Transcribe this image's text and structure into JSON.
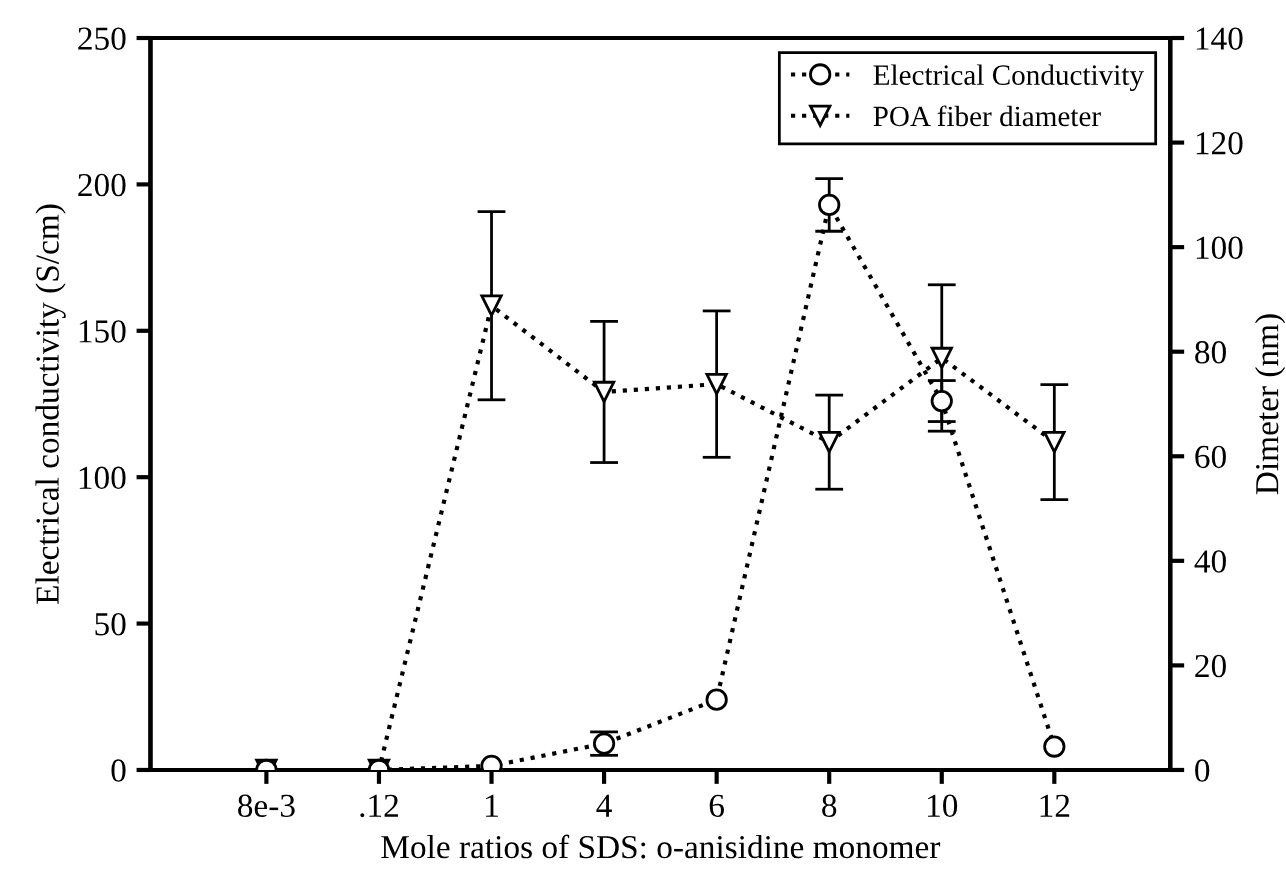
{
  "chart_data": {
    "type": "line",
    "xlabel": "Mole ratios of SDS: o-anisidine monomer",
    "ylabel": "Electrical conductivity (S/cm)",
    "y2label": "Dimeter (nm)",
    "categories": [
      "8e-3",
      ".12",
      "1",
      "4",
      "6",
      "8",
      "10",
      "12"
    ],
    "series": [
      {
        "name": "Electrical Conductivity",
        "color": "#000000",
        "marker": "circle",
        "line_style": "dotted",
        "values": [
          0,
          0,
          1.4,
          9,
          24,
          193,
          126,
          8
        ],
        "errors": [
          null,
          null,
          null,
          4,
          null,
          9,
          7,
          null
        ]
      },
      {
        "name": "POA fiber diameter",
        "color": "#000000",
        "marker": "triangle",
        "line_style": "dotted",
        "axis": "y2",
        "values": [
          0,
          0,
          88.8,
          72.3,
          73.8,
          62.7,
          78.8,
          62.7
        ],
        "errors": [
          null,
          null,
          18,
          13.5,
          14,
          9,
          14,
          11
        ]
      }
    ],
    "ylim": [
      0,
      250
    ],
    "yticks": [
      0,
      50,
      100,
      150,
      200,
      250
    ],
    "y2lim": [
      0,
      140
    ],
    "y2ticks": [
      0,
      20,
      40,
      60,
      80,
      100,
      120,
      140
    ],
    "grid": false,
    "legend": "top right"
  }
}
